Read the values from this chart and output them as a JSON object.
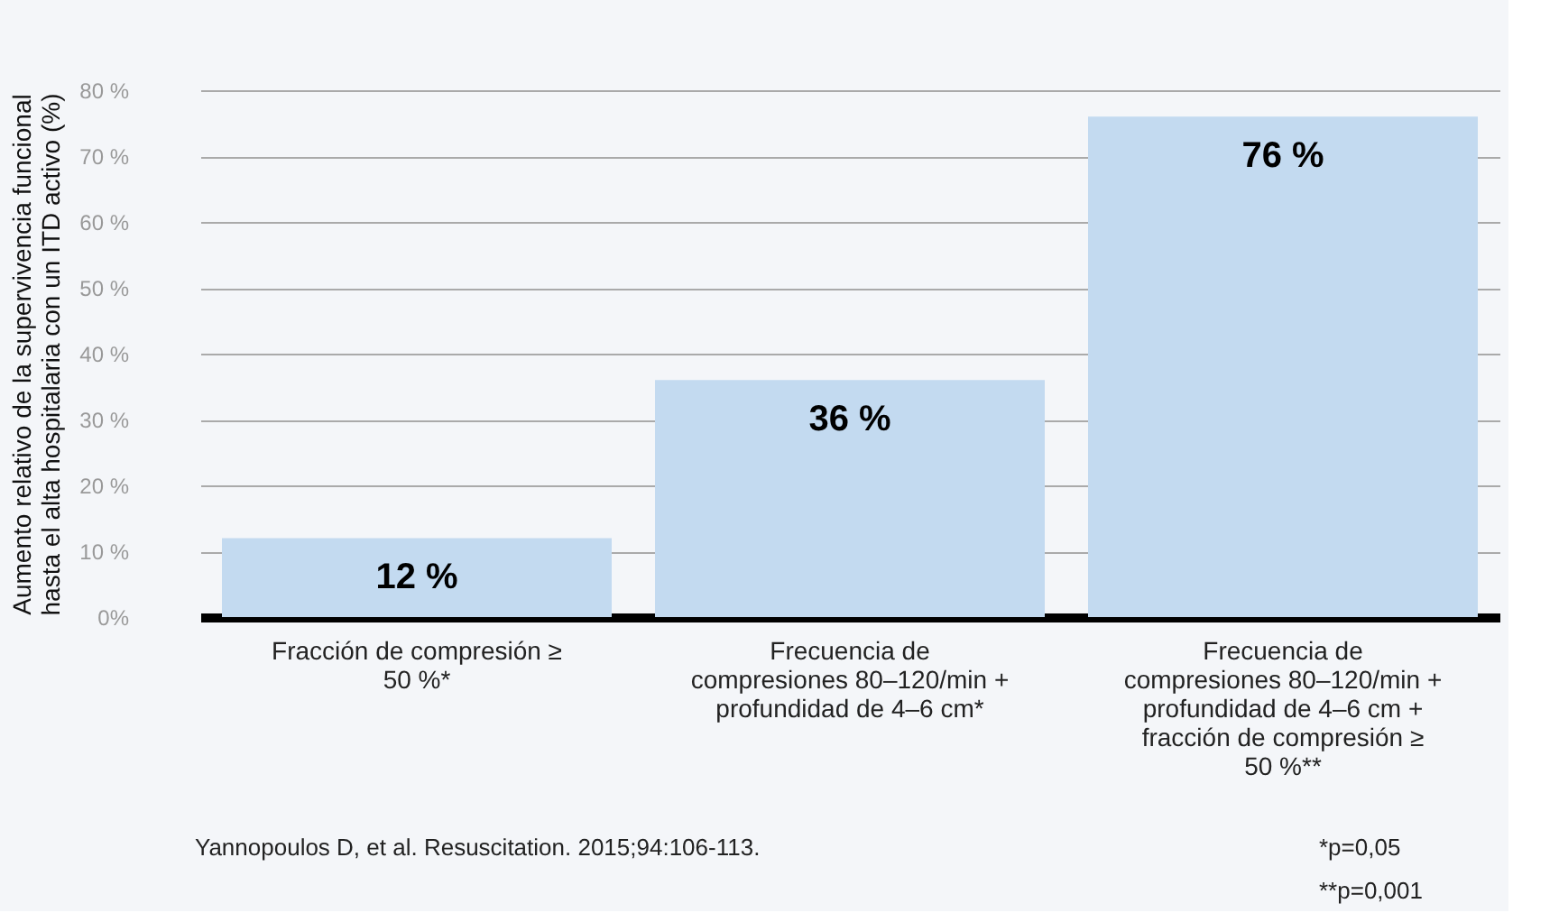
{
  "chart_data": {
    "type": "bar",
    "categories": [
      "Fracción de compresión ≥ 50 %*",
      "Frecuencia de compresiones 80–120/min + profundidad de 4–6 cm*",
      "Frecuencia de compresiones 80–120/min + profundidad de 4–6 cm + fracción de compresión ≥ 50 %**"
    ],
    "values": [
      12,
      36,
      76
    ],
    "value_labels": [
      "12 %",
      "36 %",
      "76 %"
    ],
    "color": "#c3daf0",
    "ylabel": "Aumento relativo de la supervivencia funcional hasta el alta hospitalaria con un ITD activo (%)",
    "ylim": [
      0,
      80
    ],
    "yticks": [
      {
        "value": 0,
        "label": "0%"
      },
      {
        "value": 10,
        "label": "10 %"
      },
      {
        "value": 20,
        "label": "20 %"
      },
      {
        "value": 30,
        "label": "30 %"
      },
      {
        "value": 40,
        "label": "40 %"
      },
      {
        "value": 50,
        "label": "50 %"
      },
      {
        "value": 60,
        "label": "60 %"
      },
      {
        "value": 70,
        "label": "70 %"
      },
      {
        "value": 80,
        "label": "80 %"
      }
    ],
    "grid": "y",
    "annotations": [
      "Yannopoulos D, et al. Resuscitation. 2015;94:106-113.",
      "*p=0,05",
      "**p=0,001"
    ]
  }
}
